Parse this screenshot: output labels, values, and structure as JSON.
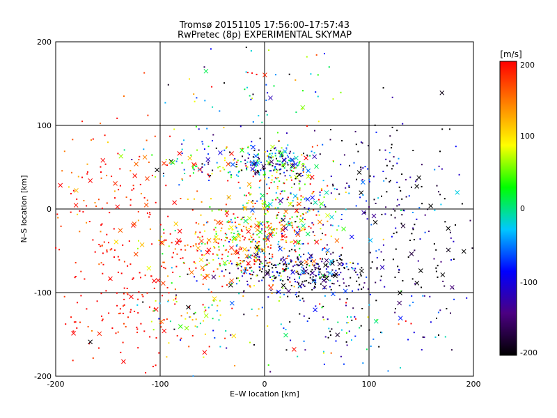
{
  "chart_data": {
    "type": "scatter",
    "title": "Tromsø 20151105 17:56:00–17:57:43",
    "subtitle": "RwPretec (8p) EXPERIMENTAL SKYMAP",
    "xlabel": "E–W location [km]",
    "ylabel": "N–S location [km]",
    "xlim": [
      -200,
      200
    ],
    "ylim": [
      -200,
      200
    ],
    "x_ticks": [
      "-200",
      "-100",
      "0",
      "100",
      "200"
    ],
    "y_ticks": [
      "-200",
      "-100",
      "0",
      "100",
      "200"
    ],
    "grid": true,
    "grid_spacing": 100,
    "colorbar": {
      "label": "[m/s]",
      "range": [
        -200,
        200
      ],
      "ticks": [
        "200",
        "100",
        "0",
        "-100",
        "-200"
      ],
      "colormap": [
        "#000000",
        "#4b0082",
        "#0000ff",
        "#00c8ff",
        "#00ff00",
        "#ffff00",
        "#ff8000",
        "#ff0000"
      ]
    },
    "markers": [
      "dot",
      "x"
    ],
    "clusters": [
      {
        "cx": 5,
        "cy": 55,
        "sx": 25,
        "sy": 10,
        "n": 230,
        "v": -40,
        "vs": 120
      },
      {
        "cx": -70,
        "cy": 55,
        "sx": 28,
        "sy": 14,
        "n": 80,
        "v": 10,
        "vs": 110
      },
      {
        "cx": 20,
        "cy": 10,
        "sx": 25,
        "sy": 18,
        "n": 160,
        "v": 40,
        "vs": 110
      },
      {
        "cx": -5,
        "cy": -30,
        "sx": 35,
        "sy": 18,
        "n": 280,
        "v": 100,
        "vs": 110
      },
      {
        "cx": 35,
        "cy": -75,
        "sx": 35,
        "sy": 14,
        "n": 330,
        "v": -160,
        "vs": 80
      },
      {
        "cx": -30,
        "cy": -55,
        "sx": 40,
        "sy": 22,
        "n": 180,
        "v": 150,
        "vs": 80
      },
      {
        "cx": -140,
        "cy": -110,
        "sx": 40,
        "sy": 50,
        "n": 160,
        "v": 200,
        "vs": 20
      },
      {
        "cx": -140,
        "cy": 20,
        "sx": 40,
        "sy": 45,
        "n": 140,
        "v": 185,
        "vs": 45
      },
      {
        "cx": 120,
        "cy": 25,
        "sx": 45,
        "sy": 40,
        "n": 160,
        "v": -160,
        "vs": 80
      },
      {
        "cx": 70,
        "cy": -130,
        "sx": 45,
        "sy": 35,
        "n": 130,
        "v": -80,
        "vs": 130
      },
      {
        "cx": 0,
        "cy": 140,
        "sx": 45,
        "sy": 30,
        "n": 70,
        "v": 0,
        "vs": 130
      },
      {
        "cx": 150,
        "cy": -60,
        "sx": 40,
        "sy": 50,
        "n": 70,
        "v": -170,
        "vs": 70
      },
      {
        "cx": -60,
        "cy": -120,
        "sx": 35,
        "sy": 30,
        "n": 90,
        "v": 40,
        "vs": 120
      }
    ]
  },
  "colors": {
    "background": "#ffffff",
    "axes": "#000000",
    "grid": "#000000"
  }
}
